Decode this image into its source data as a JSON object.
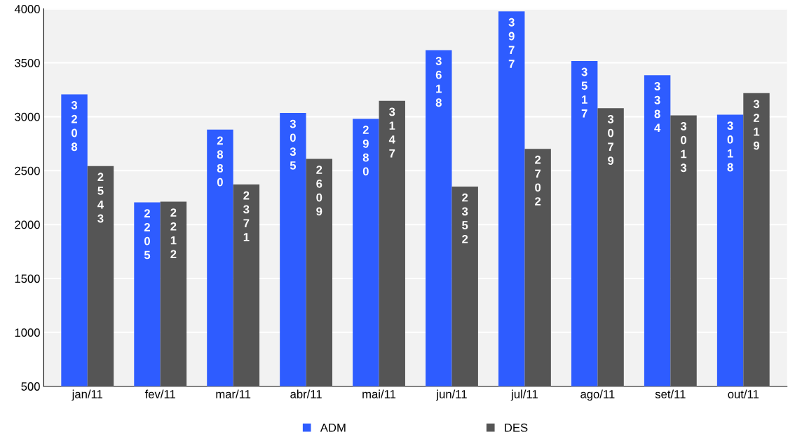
{
  "chart_data": {
    "type": "bar",
    "categories": [
      "jan/11",
      "fev/11",
      "mar/11",
      "abr/11",
      "mai/11",
      "jun/11",
      "jul/11",
      "ago/11",
      "set/11",
      "out/11"
    ],
    "series": [
      {
        "name": "ADM",
        "color": "#2e5cff",
        "values": [
          3208,
          2205,
          2880,
          3035,
          2980,
          3618,
          3977,
          3517,
          3384,
          3018
        ]
      },
      {
        "name": "DES",
        "color": "#555555",
        "values": [
          2543,
          2212,
          2371,
          2609,
          3147,
          2352,
          2702,
          3079,
          3013,
          3219
        ]
      }
    ],
    "ylim": [
      500,
      4000
    ],
    "yticks": [
      500,
      1000,
      1500,
      2000,
      2500,
      3000,
      3500,
      4000
    ],
    "grid": "y",
    "legend": "bottom",
    "data_labels": true
  }
}
